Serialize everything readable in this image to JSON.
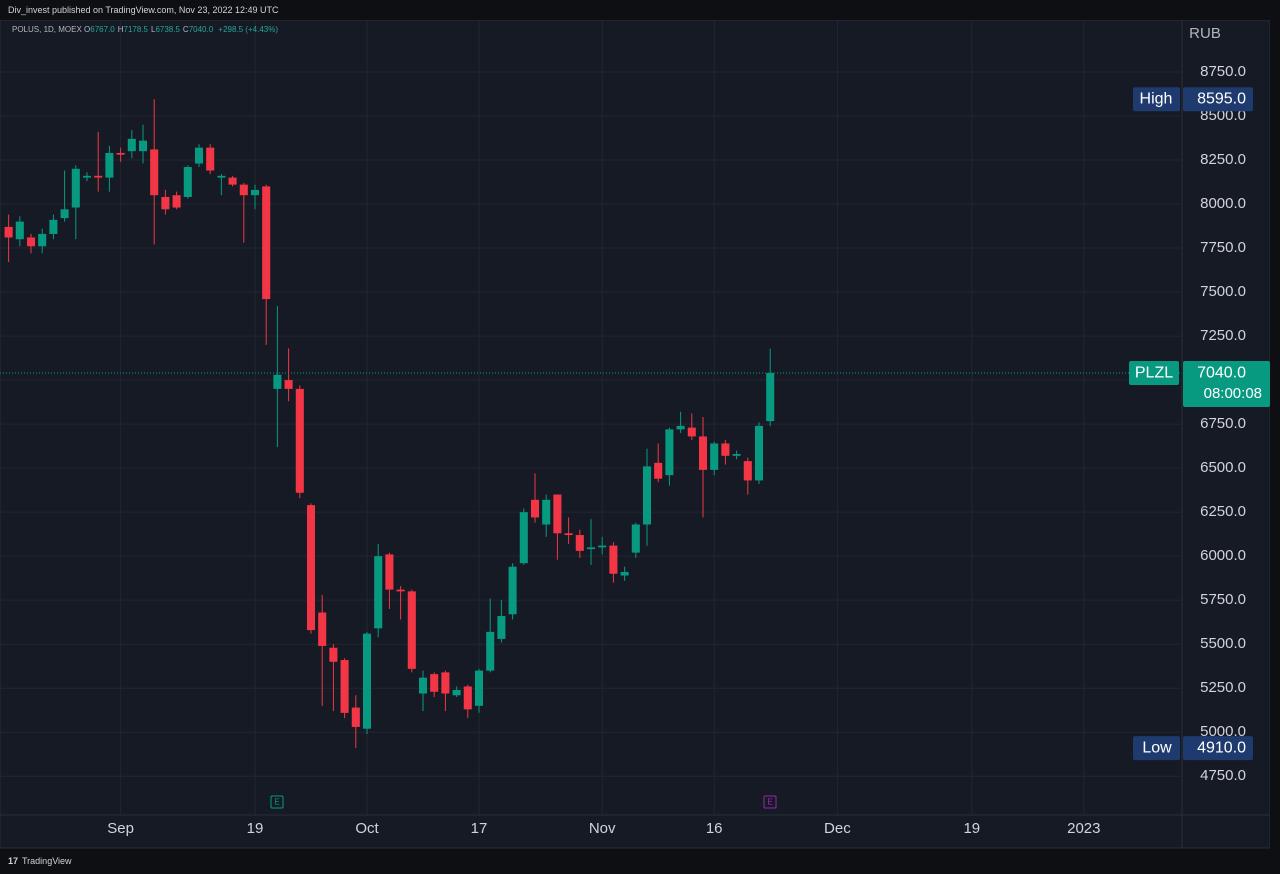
{
  "header": "Div_invest published on TradingView.com, Nov 23, 2022 12:49 UTC",
  "footer": "TradingView",
  "chart_data": {
    "type": "candlestick",
    "legend": {
      "symbol": "POLUS, 1D, MOEX",
      "items": [
        {
          "key": "O",
          "value": "6767.0"
        },
        {
          "key": "H",
          "value": "7178.5"
        },
        {
          "key": "L",
          "value": "6738.5"
        },
        {
          "key": "C",
          "value": "7040.0"
        }
      ],
      "change": "+298.5 (+4.43%)"
    },
    "currency": "RUB",
    "up_color": "#089981",
    "down_color": "#f23645",
    "grid": true,
    "categories": [
      null,
      null,
      null,
      null,
      null,
      null,
      null,
      null,
      null,
      null,
      "Sep",
      null,
      null,
      null,
      null,
      null,
      null,
      null,
      null,
      null,
      null,
      null,
      "19",
      null,
      null,
      null,
      null,
      null,
      null,
      null,
      null,
      null,
      "Oct",
      null,
      null,
      null,
      null,
      null,
      null,
      null,
      null,
      null,
      "17",
      null,
      null,
      null,
      null,
      null,
      null,
      null,
      null,
      null,
      null,
      "Nov",
      null,
      null,
      null,
      null,
      null,
      null,
      null,
      null,
      null,
      "16",
      null,
      null,
      null,
      null,
      null,
      null,
      null,
      null,
      null,
      null,
      "Dec",
      null,
      null,
      null,
      null,
      null,
      null,
      null,
      null,
      null,
      null,
      null,
      "19",
      null,
      null,
      null,
      null,
      null,
      null,
      null,
      null,
      null,
      "2023",
      null,
      null,
      null,
      null,
      null,
      null,
      null,
      null
    ],
    "open": [
      7870,
      7800,
      7810,
      7760,
      7830,
      7920,
      7980,
      8150,
      8160,
      8150,
      8290,
      8300,
      8300,
      8310,
      8040,
      8050,
      8040,
      8230,
      8320,
      8150,
      8150,
      8110,
      8050,
      8100,
      6950,
      7000,
      6950,
      6290,
      5680,
      5480,
      5410,
      5140,
      5020,
      5590,
      6010,
      5810,
      5800,
      5220,
      5330,
      5340,
      5210,
      5260,
      5150,
      5350,
      5530,
      5670,
      5960,
      6320,
      6180,
      6350,
      6130,
      6120,
      6040,
      6050,
      6060,
      5890,
      6020,
      6180,
      6530,
      6460,
      6720,
      6730,
      6680,
      6490,
      6640,
      6570,
      6540,
      6430,
      6767,
      null,
      null,
      null,
      null,
      null,
      null,
      null,
      null,
      null,
      null,
      null,
      null,
      null,
      null,
      null,
      null,
      null,
      null,
      null,
      null,
      null,
      null,
      null,
      null,
      null,
      null,
      null,
      null,
      null,
      null,
      null,
      null,
      null,
      null,
      null,
      null
    ],
    "high": [
      7940,
      7930,
      7830,
      7860,
      7940,
      8190,
      8220,
      8180,
      8410,
      8330,
      8320,
      8420,
      8450,
      8595,
      8080,
      8070,
      8220,
      8340,
      8340,
      8170,
      8160,
      8120,
      8110,
      8110,
      7420,
      7180,
      6970,
      6300,
      5780,
      5500,
      5420,
      5210,
      5570,
      6070,
      6020,
      5830,
      5810,
      5350,
      5340,
      5350,
      5260,
      5270,
      5360,
      5760,
      5750,
      5960,
      6270,
      6470,
      6350,
      6350,
      6220,
      6150,
      6210,
      6110,
      6080,
      5940,
      6190,
      6610,
      6640,
      6730,
      6820,
      6810,
      6790,
      6650,
      6660,
      6600,
      6560,
      6760,
      7178.5,
      null,
      null,
      null,
      null,
      null,
      null,
      null,
      null,
      null,
      null,
      null,
      null,
      null,
      null,
      null,
      null,
      null,
      null,
      null,
      null,
      null,
      null,
      null,
      null,
      null,
      null,
      null,
      null,
      null,
      null,
      null,
      null,
      null,
      null,
      null,
      null
    ],
    "low": [
      7670,
      7760,
      7720,
      7720,
      7800,
      7900,
      7800,
      8130,
      8070,
      8070,
      8240,
      8260,
      8230,
      7770,
      7940,
      7970,
      8030,
      8210,
      8170,
      8050,
      8100,
      7780,
      7970,
      7200,
      6620,
      6880,
      6330,
      5560,
      5150,
      5120,
      5080,
      4910,
      4990,
      5540,
      5700,
      5640,
      5340,
      5120,
      5200,
      5120,
      5200,
      5080,
      5110,
      5340,
      5510,
      5640,
      5950,
      6190,
      6110,
      5980,
      6070,
      5990,
      5950,
      6010,
      5850,
      5860,
      5990,
      6060,
      6420,
      6400,
      6700,
      6660,
      6220,
      6460,
      6520,
      6550,
      6350,
      6410,
      6738.5,
      null,
      null,
      null,
      null,
      null,
      null,
      null,
      null,
      null,
      null,
      null,
      null,
      null,
      null,
      null,
      null,
      null,
      null,
      null,
      null,
      null,
      null,
      null,
      null,
      null,
      null,
      null,
      null,
      null,
      null,
      null,
      null,
      null,
      null,
      null,
      null
    ],
    "close": [
      7810,
      7900,
      7760,
      7830,
      7910,
      7970,
      8200,
      8160,
      8150,
      8290,
      8280,
      8370,
      8360,
      8050,
      7970,
      7980,
      8210,
      8320,
      8190,
      8160,
      8110,
      8050,
      8080,
      7460,
      7030,
      6950,
      6360,
      5580,
      5490,
      5400,
      5110,
      5030,
      5560,
      6000,
      5810,
      5800,
      5360,
      5310,
      5230,
      5220,
      5240,
      5130,
      5350,
      5570,
      5660,
      5940,
      6250,
      6220,
      6320,
      6130,
      6120,
      6030,
      6050,
      6060,
      5900,
      5910,
      6180,
      6510,
      6440,
      6720,
      6740,
      6680,
      6490,
      6640,
      6570,
      6580,
      6430,
      6740,
      7040,
      null,
      null,
      null,
      null,
      null,
      null,
      null,
      null,
      null,
      null,
      null,
      null,
      null,
      null,
      null,
      null,
      null,
      null,
      null,
      null,
      null,
      null,
      null,
      null,
      null,
      null,
      null,
      null,
      null,
      null,
      null,
      null,
      null,
      null,
      null,
      null
    ],
    "ylim": [
      4530,
      9045
    ],
    "yticks": [
      {
        "value": 4750,
        "label": "4750.0"
      },
      {
        "value": 5000,
        "label": "5000.0"
      },
      {
        "value": 5250,
        "label": "5250.0"
      },
      {
        "value": 5500,
        "label": "5500.0"
      },
      {
        "value": 5750,
        "label": "5750.0"
      },
      {
        "value": 6000,
        "label": "6000.0"
      },
      {
        "value": 6250,
        "label": "6250.0"
      },
      {
        "value": 6500,
        "label": "6500.0"
      },
      {
        "value": 6750,
        "label": "6750.0"
      },
      {
        "value": 7000,
        "label": "7000.0"
      },
      {
        "value": 7250,
        "label": "7250.0"
      },
      {
        "value": 7500,
        "label": "7500.0"
      },
      {
        "value": 7750,
        "label": "7750.0"
      },
      {
        "value": 8000,
        "label": "8000.0"
      },
      {
        "value": 8250,
        "label": "8250.0"
      },
      {
        "value": 8500,
        "label": "8500.0"
      },
      {
        "value": 8750,
        "label": "8750.0"
      }
    ],
    "high_marker": {
      "name": "High",
      "value": 8595,
      "label": "8595.0"
    },
    "low_marker": {
      "name": "Low",
      "value": 4910,
      "label": "4910.0"
    },
    "last_price": {
      "symbol": "PLZL",
      "value": 7040,
      "label": "7040.0",
      "countdown": "08:00:08"
    },
    "events": [
      {
        "label": "E",
        "color": "#089981"
      },
      {
        "label": "E",
        "color": "#9c27b0"
      }
    ]
  }
}
